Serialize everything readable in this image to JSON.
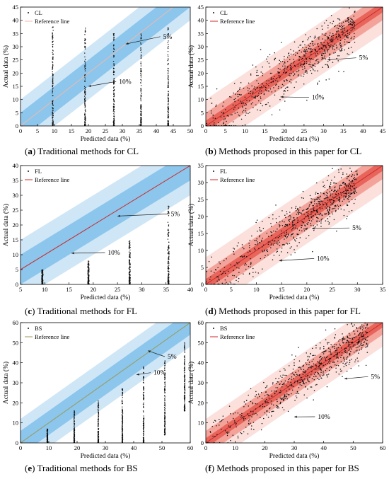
{
  "figure": {
    "xlabel": "Predicted data (%)",
    "ylabel": "Actual data (%)",
    "reference_label": "Reference line",
    "band_labels": [
      "5%",
      "10%"
    ],
    "colors": {
      "blue_outer": "#cfe6f6",
      "blue_inner": "#8cc6ec",
      "red_outer": "#fbe0dc",
      "red_inner": "#f4a39a",
      "red_core": "#e8655b",
      "ref_line_traditional_cl": "#f2b8a8",
      "ref_line_red": "#cc2a2a",
      "ref_line_bs": "#9a9a58",
      "points": "#111111"
    }
  },
  "chart_data": [
    {
      "id": "a",
      "type": "scatter",
      "theme": "blue",
      "series_label": "CL",
      "caption_letter": "a",
      "caption_text": "Traditional methods for CL",
      "xlim": [
        0,
        50
      ],
      "ylim": [
        0,
        45
      ],
      "xticks": [
        0,
        5,
        10,
        15,
        20,
        25,
        30,
        35,
        40,
        45,
        50
      ],
      "yticks": [
        0,
        5,
        10,
        15,
        20,
        25,
        30,
        35,
        40,
        45
      ],
      "band_half_widths": [
        5,
        10
      ],
      "clusters": [
        {
          "x": 9.5,
          "y_min": 0,
          "y_max": 37.5
        },
        {
          "x": 19,
          "y_min": 0,
          "y_max": 37
        },
        {
          "x": 27.5,
          "y_min": 0,
          "y_max": 35
        },
        {
          "x": 35.5,
          "y_min": 0,
          "y_max": 35
        },
        {
          "x": 43.5,
          "y_min": 0,
          "y_max": 37.5
        }
      ],
      "annotations": [
        {
          "text": "5%",
          "x": 42,
          "y": 33,
          "arrow_to": [
            31,
            31
          ]
        },
        {
          "text": "10%",
          "x": 29,
          "y": 16,
          "arrow_to": [
            20,
            15
          ]
        }
      ]
    },
    {
      "id": "b",
      "type": "scatter",
      "theme": "red",
      "series_label": "CL",
      "caption_letter": "b",
      "caption_text": "Methods proposed in this paper for CL",
      "xlim": [
        0,
        45
      ],
      "ylim": [
        0,
        45
      ],
      "xticks": [
        0,
        5,
        10,
        15,
        20,
        25,
        30,
        35,
        40,
        45
      ],
      "yticks": [
        0,
        5,
        10,
        15,
        20,
        25,
        30,
        35,
        40,
        45
      ],
      "band_half_widths": [
        5,
        10
      ],
      "scatter_extent": [
        0,
        38
      ],
      "annotations": [
        {
          "text": "5%",
          "x": 39,
          "y": 25,
          "arrow_to": [
            31,
            25
          ]
        },
        {
          "text": "10%",
          "x": 27,
          "y": 10,
          "arrow_to": [
            19,
            11
          ]
        }
      ]
    },
    {
      "id": "c",
      "type": "scatter",
      "theme": "blue",
      "series_label": "FL",
      "caption_letter": "c",
      "caption_text": "Traditional methods for FL",
      "xlim": [
        5,
        40
      ],
      "ylim": [
        0,
        40
      ],
      "xticks": [
        5,
        10,
        15,
        20,
        25,
        30,
        35,
        40
      ],
      "yticks": [
        0,
        5,
        10,
        15,
        20,
        25,
        30,
        35,
        40
      ],
      "band_half_widths": [
        5,
        10
      ],
      "clusters": [
        {
          "x": 9.5,
          "y_min": 0,
          "y_max": 5
        },
        {
          "x": 19,
          "y_min": 0,
          "y_max": 8
        },
        {
          "x": 27.5,
          "y_min": 0,
          "y_max": 15
        },
        {
          "x": 35.5,
          "y_min": 0,
          "y_max": 27
        }
      ],
      "annotations": [
        {
          "text": "5%",
          "x": 36,
          "y": 23,
          "arrow_to": [
            25,
            23
          ]
        },
        {
          "text": "10%",
          "x": 23,
          "y": 10,
          "arrow_to": [
            15.5,
            10.5
          ]
        }
      ]
    },
    {
      "id": "d",
      "type": "scatter",
      "theme": "red",
      "series_label": "FL",
      "caption_letter": "d",
      "caption_text": "Methods proposed in this paper for FL",
      "xlim": [
        0,
        35
      ],
      "ylim": [
        0,
        35
      ],
      "xticks": [
        0,
        5,
        10,
        15,
        20,
        25,
        30,
        35
      ],
      "yticks": [
        0,
        5,
        10,
        15,
        20,
        25,
        30,
        35
      ],
      "band_half_widths": [
        4,
        8
      ],
      "scatter_extent": [
        0,
        30
      ],
      "annotations": [
        {
          "text": "5%",
          "x": 29,
          "y": 16,
          "arrow_to": [
            21,
            16.5
          ]
        },
        {
          "text": "10%",
          "x": 22,
          "y": 7,
          "arrow_to": [
            14.5,
            7
          ]
        }
      ]
    },
    {
      "id": "e",
      "type": "scatter",
      "theme": "blue",
      "series_label": "BS",
      "caption_letter": "e",
      "caption_text": "Traditional methods for BS",
      "xlim": [
        0,
        60
      ],
      "ylim": [
        0,
        60
      ],
      "xticks": [
        0,
        10,
        20,
        30,
        40,
        50,
        60
      ],
      "yticks": [
        0,
        10,
        20,
        30,
        40,
        50,
        60
      ],
      "band_half_widths": [
        6,
        12
      ],
      "clusters": [
        {
          "x": 9.5,
          "y_min": 0,
          "y_max": 7
        },
        {
          "x": 19,
          "y_min": 0,
          "y_max": 16
        },
        {
          "x": 27.5,
          "y_min": 0,
          "y_max": 21
        },
        {
          "x": 36,
          "y_min": 0,
          "y_max": 27
        },
        {
          "x": 43.5,
          "y_min": 0,
          "y_max": 38
        },
        {
          "x": 51,
          "y_min": 4,
          "y_max": 41
        },
        {
          "x": 58,
          "y_min": 16,
          "y_max": 50
        }
      ],
      "annotations": [
        {
          "text": "5%",
          "x": 52,
          "y": 42,
          "arrow_to": [
            45,
            46
          ]
        },
        {
          "text": "10%",
          "x": 47,
          "y": 34,
          "arrow_to": [
            41,
            34
          ]
        }
      ]
    },
    {
      "id": "f",
      "type": "scatter",
      "theme": "red",
      "series_label": "BS",
      "caption_letter": "f",
      "caption_text": "Methods proposed in this paper for BS",
      "xlim": [
        0,
        60
      ],
      "ylim": [
        0,
        60
      ],
      "xticks": [
        0,
        10,
        20,
        30,
        40,
        50,
        60
      ],
      "yticks": [
        0,
        10,
        20,
        30,
        40,
        50,
        60
      ],
      "band_half_widths": [
        6,
        12
      ],
      "scatter_extent": [
        0,
        55
      ],
      "annotations": [
        {
          "text": "5%",
          "x": 56,
          "y": 32,
          "arrow_to": [
            47,
            32
          ]
        },
        {
          "text": "10%",
          "x": 38,
          "y": 12,
          "arrow_to": [
            30,
            13
          ]
        }
      ]
    }
  ]
}
